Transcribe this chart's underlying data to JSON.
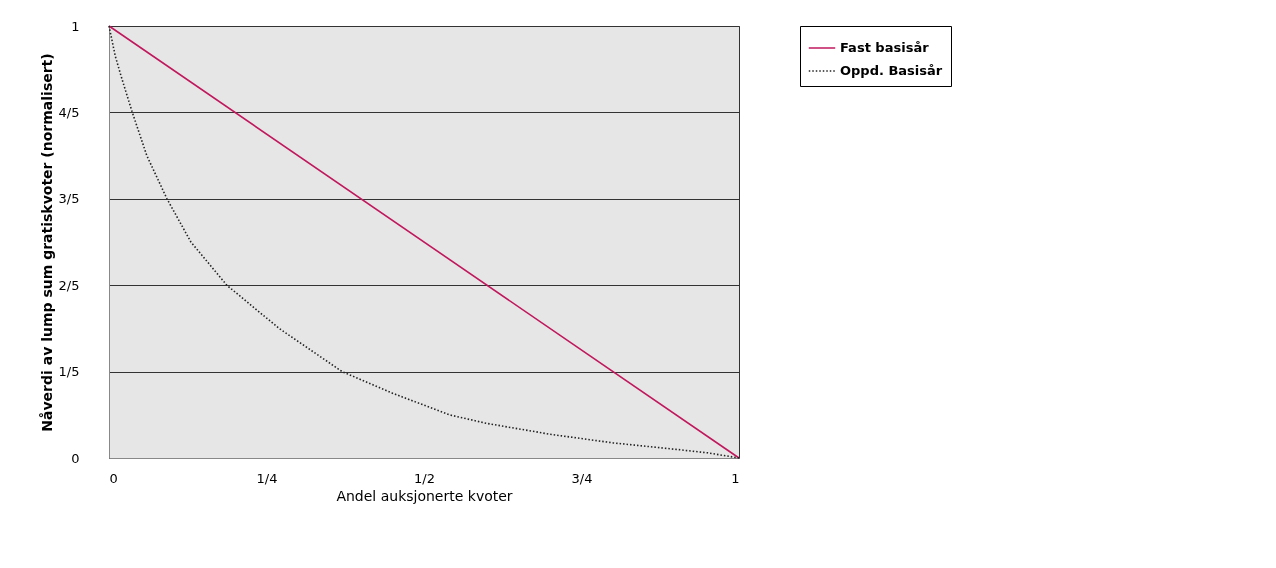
{
  "chart_data": {
    "type": "line",
    "xlabel": "Andel auksjonerte kvoter",
    "ylabel": "Nåverdi av lump sum gratiskvoter (normalisert)",
    "series": [
      {
        "name": "Fast basisår",
        "color": "#c0175d",
        "line_style": "solid",
        "x": [
          0,
          1
        ],
        "values": [
          1,
          0
        ]
      },
      {
        "name": "Oppd. Basisår",
        "color": "#222222",
        "line_style": "dotted",
        "x": [
          0,
          0.01,
          0.02,
          0.037,
          0.06,
          0.092,
          0.13,
          0.187,
          0.27,
          0.37,
          0.45,
          0.54,
          0.6,
          0.7,
          0.75,
          0.8,
          0.9,
          0.95,
          1
        ],
        "values": [
          1,
          0.93,
          0.88,
          0.8,
          0.7,
          0.6,
          0.5,
          0.4,
          0.3,
          0.2,
          0.15,
          0.1,
          0.08,
          0.055,
          0.045,
          0.035,
          0.02,
          0.012,
          0
        ]
      }
    ],
    "xlim": [
      0,
      1
    ],
    "ylim": [
      0,
      1
    ],
    "xticks": [
      0,
      {
        "value": 0.25,
        "label": "1/4"
      },
      {
        "value": 0.5,
        "label": "1/2"
      },
      {
        "value": 0.75,
        "label": "3/4"
      },
      1
    ],
    "yticks": [
      0,
      {
        "value": 0.2,
        "label": "1/5"
      },
      {
        "value": 0.4,
        "label": "2/5"
      },
      {
        "value": 0.6,
        "label": "3/5"
      },
      {
        "value": 0.8,
        "label": "4/5"
      },
      1
    ],
    "grid": "y",
    "legend": "top right",
    "marker": "none"
  }
}
